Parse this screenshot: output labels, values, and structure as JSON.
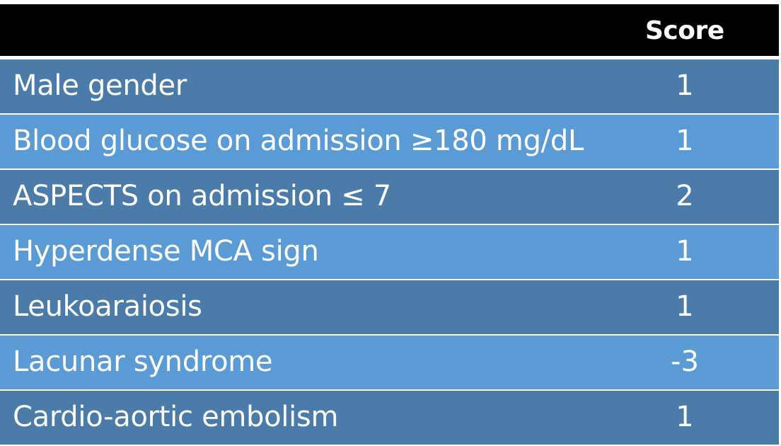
{
  "table": {
    "header": {
      "score_label": "Score"
    },
    "rows": [
      {
        "factor": "Male gender",
        "score": "1"
      },
      {
        "factor": "Blood glucose on admission ≥180 mg/dL",
        "score": "1"
      },
      {
        "factor": "ASPECTS on admission ≤ 7",
        "score": "2"
      },
      {
        "factor": "Hyperdense MCA sign",
        "score": "1"
      },
      {
        "factor": "Leukoaraiosis",
        "score": "1"
      },
      {
        "factor": "Lacunar syndrome",
        "score": "-3"
      },
      {
        "factor": "Cardio-aortic embolism",
        "score": "1"
      }
    ]
  },
  "colors": {
    "header_bg": "#000000",
    "row_dark": "#4a7ba9",
    "row_light": "#5b9bd5",
    "text": "#ffffff"
  }
}
